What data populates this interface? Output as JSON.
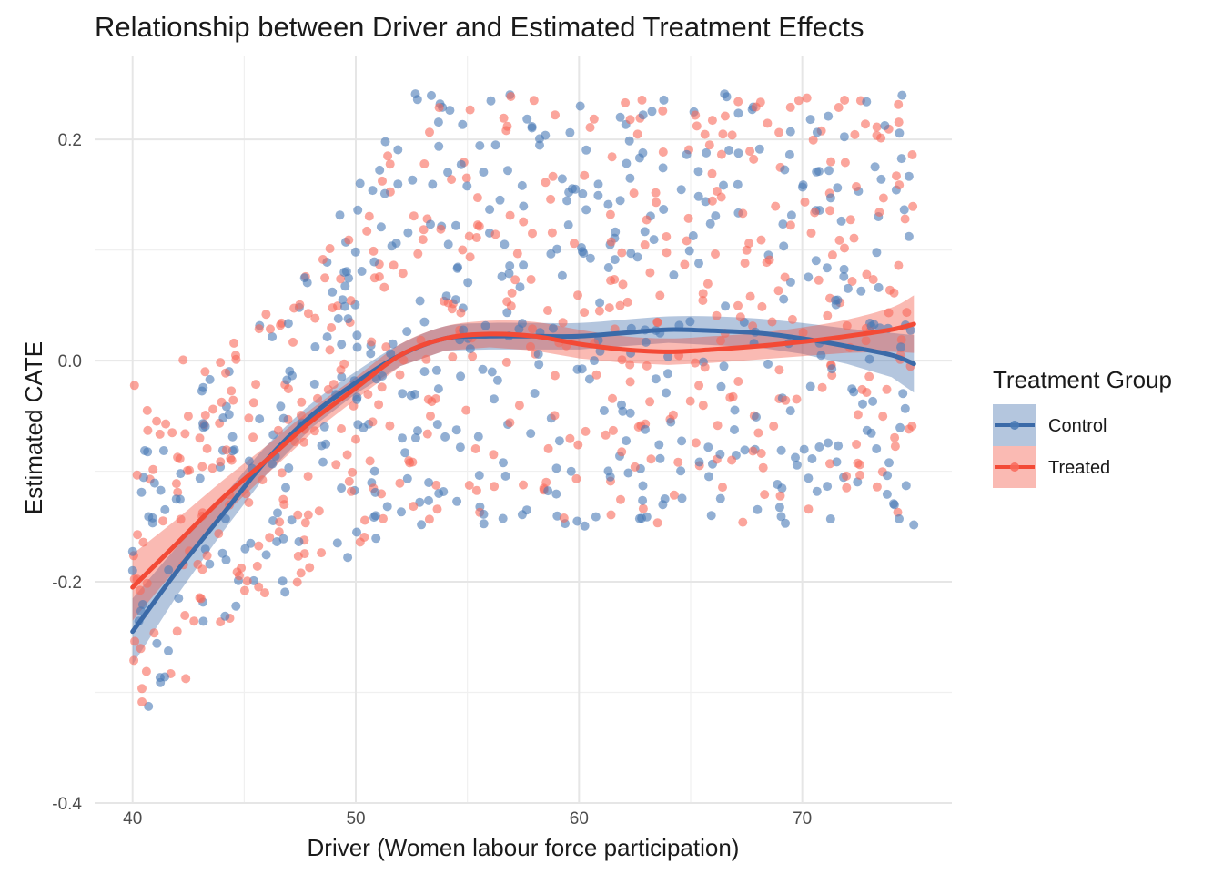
{
  "chart_data": {
    "type": "scatter",
    "title": "Relationship between Driver and Estimated Treatment Effects",
    "xlabel": "Driver (Women labour force participation)",
    "ylabel": "Estimated CATE",
    "xlim": [
      38.3,
      76.7
    ],
    "ylim": [
      -0.4,
      0.275
    ],
    "x_ticks": [
      40,
      50,
      60,
      70
    ],
    "x_tick_labels": [
      "40",
      "50",
      "60",
      "70"
    ],
    "y_ticks": [
      -0.4,
      -0.2,
      0.0,
      0.2
    ],
    "y_tick_labels": [
      "-0.4",
      "-0.2",
      "0.0",
      "0.2"
    ],
    "grid": true,
    "legend": {
      "title": "Treatment Group",
      "placement": "right",
      "entries": [
        "Control",
        "Treated"
      ]
    },
    "series": [
      {
        "name": "Control",
        "color": "#3b6aa8",
        "point_color": "#4a7ab5",
        "point_count": 500,
        "x_range": [
          40,
          75
        ],
        "smooth": {
          "x": [
            40,
            42,
            44,
            46,
            48,
            50,
            52,
            54,
            56,
            58,
            60,
            62,
            64,
            66,
            68,
            70,
            72,
            74,
            75
          ],
          "y": [
            -0.245,
            -0.19,
            -0.14,
            -0.09,
            -0.05,
            -0.02,
            0.005,
            0.02,
            0.022,
            0.022,
            0.022,
            0.025,
            0.028,
            0.027,
            0.025,
            0.02,
            0.013,
            0.005,
            -0.003
          ],
          "se": [
            0.03,
            0.022,
            0.016,
            0.013,
            0.011,
            0.01,
            0.01,
            0.011,
            0.012,
            0.012,
            0.012,
            0.012,
            0.012,
            0.013,
            0.013,
            0.014,
            0.016,
            0.02,
            0.026
          ]
        }
      },
      {
        "name": "Treated",
        "color": "#f34a36",
        "point_color": "#f8695a",
        "point_count": 500,
        "x_range": [
          40,
          75
        ],
        "smooth": {
          "x": [
            40,
            42,
            44,
            46,
            48,
            50,
            52,
            54,
            56,
            58,
            60,
            62,
            64,
            66,
            68,
            70,
            72,
            74,
            75
          ],
          "y": [
            -0.205,
            -0.165,
            -0.125,
            -0.09,
            -0.055,
            -0.025,
            0.005,
            0.02,
            0.024,
            0.022,
            0.015,
            0.01,
            0.008,
            0.01,
            0.013,
            0.017,
            0.022,
            0.028,
            0.033
          ],
          "se": [
            0.03,
            0.022,
            0.016,
            0.013,
            0.011,
            0.01,
            0.01,
            0.011,
            0.012,
            0.013,
            0.013,
            0.012,
            0.012,
            0.012,
            0.012,
            0.013,
            0.015,
            0.02,
            0.026
          ]
        }
      }
    ],
    "scatter_pattern": {
      "segments": [
        {
          "x_start": 40,
          "x_end": 50,
          "y_low": -0.33,
          "y_high": 0.04
        },
        {
          "x_start": 47,
          "x_end": 52,
          "y_low": -0.2,
          "y_high": 0.17
        },
        {
          "x_start": 50,
          "x_end": 75,
          "y_low": -0.15,
          "y_high": 0.245
        }
      ]
    }
  }
}
